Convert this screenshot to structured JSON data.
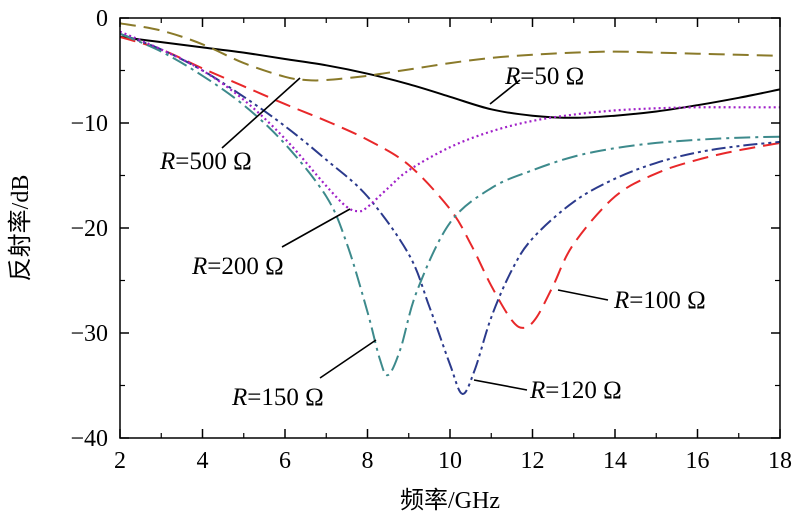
{
  "chart_data": {
    "type": "line",
    "title": "",
    "xlabel": "频率/GHz",
    "ylabel": "反射率/dB",
    "xlim": [
      2,
      18
    ],
    "ylim": [
      -40,
      0
    ],
    "xticks": [
      2,
      4,
      6,
      8,
      10,
      12,
      14,
      16,
      18
    ],
    "yticks": [
      0,
      -10,
      -20,
      -30,
      -40
    ],
    "grid": false,
    "legend": "none",
    "series": [
      {
        "name": "R=50 Ω",
        "color": "#000000",
        "dash": "solid",
        "x": [
          2,
          3,
          4,
          5,
          6,
          7,
          8,
          9,
          10,
          11,
          12,
          13,
          14,
          15,
          16,
          17,
          18
        ],
        "y": [
          -1.8,
          -2.3,
          -2.8,
          -3.3,
          -3.9,
          -4.5,
          -5.3,
          -6.3,
          -7.5,
          -8.7,
          -9.3,
          -9.5,
          -9.3,
          -8.9,
          -8.3,
          -7.6,
          -6.8
        ]
      },
      {
        "name": "R=100 Ω",
        "color": "#e8282a",
        "dash": "dash",
        "x": [
          2,
          3,
          4,
          5,
          6,
          7,
          8,
          9,
          10,
          10.5,
          11,
          11.5,
          11.8,
          12.1,
          12.5,
          13,
          14,
          15,
          16,
          17,
          18
        ],
        "y": [
          -1.8,
          -3.0,
          -4.8,
          -6.5,
          -8.2,
          -9.8,
          -11.6,
          -14.0,
          -18.2,
          -21.5,
          -25.5,
          -28.8,
          -29.5,
          -28.5,
          -25.5,
          -21.5,
          -17.0,
          -14.8,
          -13.5,
          -12.6,
          -11.9
        ]
      },
      {
        "name": "R=120 Ω",
        "color": "#2b3a8c",
        "dash": "dash-dot-dot",
        "x": [
          2,
          3,
          4,
          5,
          6,
          7,
          8,
          9,
          9.5,
          10,
          10.3,
          10.6,
          11,
          11.5,
          12,
          13,
          14,
          15,
          16,
          17,
          18
        ],
        "y": [
          -1.5,
          -3.0,
          -5.0,
          -7.5,
          -10.3,
          -13.5,
          -17.0,
          -22.5,
          -27.5,
          -33.0,
          -35.8,
          -33.5,
          -28.5,
          -24.0,
          -21.0,
          -17.5,
          -15.3,
          -13.8,
          -12.8,
          -12.2,
          -11.8
        ]
      },
      {
        "name": "R=150 Ω",
        "color": "#3d8a8c",
        "dash": "dash-dot",
        "x": [
          2,
          3,
          4,
          5,
          6,
          7,
          7.5,
          8,
          8.3,
          8.5,
          8.8,
          9.2,
          10,
          11,
          12,
          13,
          14,
          15,
          16,
          17,
          18
        ],
        "y": [
          -1.5,
          -3.2,
          -5.5,
          -8.3,
          -12.0,
          -17.0,
          -21.5,
          -28.0,
          -32.5,
          -34.0,
          -31.5,
          -26.0,
          -19.5,
          -16.2,
          -14.5,
          -13.2,
          -12.4,
          -11.9,
          -11.6,
          -11.4,
          -11.3
        ]
      },
      {
        "name": "R=200 Ω",
        "color": "#a020c8",
        "dash": "dot",
        "x": [
          2,
          3,
          4,
          5,
          6,
          7,
          7.5,
          7.8,
          8,
          8.5,
          9,
          10,
          11,
          12,
          13,
          14,
          15,
          16,
          17,
          18
        ],
        "y": [
          -1.3,
          -3.0,
          -5.0,
          -7.8,
          -11.5,
          -16.0,
          -18.0,
          -18.4,
          -18.0,
          -16.2,
          -14.5,
          -12.3,
          -10.8,
          -9.8,
          -9.2,
          -8.8,
          -8.6,
          -8.5,
          -8.5,
          -8.5
        ]
      },
      {
        "name": "R=500 Ω",
        "color": "#8a7a2a",
        "dash": "dash",
        "x": [
          2,
          3,
          4,
          5,
          6,
          6.5,
          7,
          8,
          9,
          10,
          11,
          12,
          13,
          14,
          15,
          16,
          17,
          18
        ],
        "y": [
          -0.5,
          -1.2,
          -2.5,
          -4.3,
          -5.6,
          -5.9,
          -5.9,
          -5.5,
          -4.9,
          -4.3,
          -3.8,
          -3.5,
          -3.3,
          -3.2,
          -3.3,
          -3.4,
          -3.5,
          -3.6
        ]
      }
    ],
    "annotations": [
      {
        "prefix": "R",
        "suffix": "=50 Ω",
        "series": "R=50 Ω"
      },
      {
        "prefix": "R",
        "suffix": "=500 Ω",
        "series": "R=500 Ω"
      },
      {
        "prefix": "R",
        "suffix": "=200 Ω",
        "series": "R=200 Ω"
      },
      {
        "prefix": "R",
        "suffix": "=100 Ω",
        "series": "R=100 Ω"
      },
      {
        "prefix": "R",
        "suffix": "=150 Ω",
        "series": "R=150 Ω"
      },
      {
        "prefix": "R",
        "suffix": "=120 Ω",
        "series": "R=120 Ω"
      }
    ]
  }
}
